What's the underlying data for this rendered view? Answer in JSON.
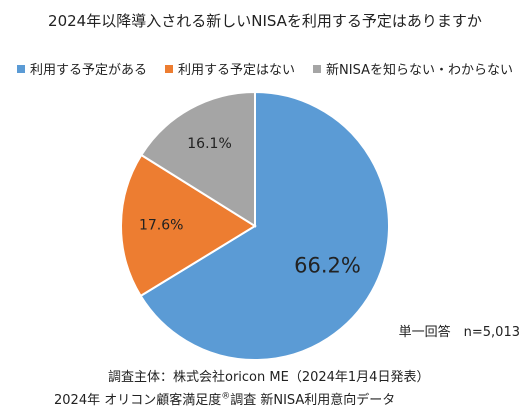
{
  "chart_data": {
    "type": "pie",
    "title": "2024年以降導入される新しいNISAを利用する予定はありますか",
    "slices": [
      {
        "label": "利用する予定がある",
        "value": 66.2,
        "display": "66.2%",
        "color": "#5b9bd5"
      },
      {
        "label": "利用する予定はない",
        "value": 17.6,
        "display": "17.6%",
        "color": "#ed7d31"
      },
      {
        "label": "新NISAを知らない・わからない",
        "value": 16.1,
        "display": "16.1%",
        "color": "#a5a5a5"
      }
    ],
    "legend_position": "top"
  },
  "notes": {
    "sample": "単一回答　n=5,013",
    "source_line1": "調査主体：株式会社oricon ME（2024年1月4日発表）",
    "source_line2_before": "2024年 オリコン顧客満足度",
    "source_line2_mark": "®",
    "source_line2_after": "調査 新NISA利用意向データ"
  }
}
